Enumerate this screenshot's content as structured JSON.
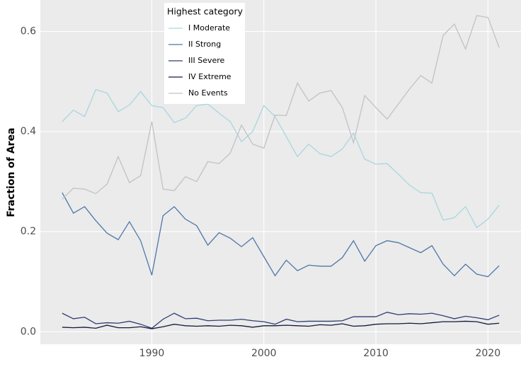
{
  "chart_data": {
    "type": "line",
    "y_label": "Fraction of Area",
    "legend_title": "Highest category",
    "x": [
      1982,
      1983,
      1984,
      1985,
      1986,
      1987,
      1988,
      1989,
      1990,
      1991,
      1992,
      1993,
      1994,
      1995,
      1996,
      1997,
      1998,
      1999,
      2000,
      2001,
      2002,
      2003,
      2004,
      2005,
      2006,
      2007,
      2008,
      2009,
      2010,
      2011,
      2012,
      2013,
      2014,
      2015,
      2016,
      2017,
      2018,
      2019,
      2020,
      2021
    ],
    "series": [
      {
        "name": "I Moderate",
        "color": "#a8d6df",
        "values": [
          0.42,
          0.443,
          0.43,
          0.484,
          0.477,
          0.44,
          0.453,
          0.48,
          0.452,
          0.448,
          0.418,
          0.427,
          0.452,
          0.455,
          0.437,
          0.42,
          0.38,
          0.4,
          0.452,
          0.43,
          0.39,
          0.35,
          0.375,
          0.356,
          0.35,
          0.365,
          0.397,
          0.345,
          0.335,
          0.336,
          0.315,
          0.293,
          0.278,
          0.277,
          0.223,
          0.228,
          0.25,
          0.208,
          0.225,
          0.253
        ]
      },
      {
        "name": "II Strong",
        "color": "#4f77a8",
        "values": [
          0.278,
          0.237,
          0.25,
          0.222,
          0.197,
          0.184,
          0.22,
          0.182,
          0.113,
          0.232,
          0.25,
          0.225,
          0.212,
          0.173,
          0.198,
          0.187,
          0.17,
          0.188,
          0.15,
          0.112,
          0.143,
          0.122,
          0.133,
          0.131,
          0.131,
          0.148,
          0.182,
          0.141,
          0.172,
          0.182,
          0.178,
          0.168,
          0.158,
          0.172,
          0.135,
          0.112,
          0.135,
          0.115,
          0.11,
          0.132
        ]
      },
      {
        "name": "III Severe",
        "color": "#2d3e72",
        "values": [
          0.037,
          0.026,
          0.029,
          0.016,
          0.018,
          0.017,
          0.021,
          0.015,
          0.007,
          0.025,
          0.037,
          0.026,
          0.027,
          0.022,
          0.023,
          0.023,
          0.025,
          0.022,
          0.02,
          0.015,
          0.025,
          0.02,
          0.021,
          0.021,
          0.021,
          0.022,
          0.03,
          0.03,
          0.03,
          0.039,
          0.034,
          0.036,
          0.035,
          0.037,
          0.032,
          0.026,
          0.031,
          0.028,
          0.024,
          0.033
        ]
      },
      {
        "name": "IV Extreme",
        "color": "#141a3a",
        "values": [
          0.009,
          0.008,
          0.009,
          0.007,
          0.013,
          0.008,
          0.008,
          0.01,
          0.006,
          0.01,
          0.015,
          0.012,
          0.011,
          0.012,
          0.011,
          0.013,
          0.012,
          0.009,
          0.012,
          0.012,
          0.013,
          0.012,
          0.011,
          0.014,
          0.013,
          0.016,
          0.011,
          0.012,
          0.015,
          0.016,
          0.016,
          0.017,
          0.016,
          0.018,
          0.02,
          0.02,
          0.021,
          0.02,
          0.015,
          0.017
        ]
      },
      {
        "name": "No Events",
        "color": "#c2c2c2",
        "values": [
          0.265,
          0.287,
          0.285,
          0.276,
          0.295,
          0.35,
          0.298,
          0.312,
          0.42,
          0.285,
          0.282,
          0.31,
          0.3,
          0.34,
          0.336,
          0.357,
          0.413,
          0.375,
          0.367,
          0.433,
          0.432,
          0.497,
          0.461,
          0.477,
          0.482,
          0.448,
          0.378,
          0.472,
          0.448,
          0.425,
          0.455,
          0.485,
          0.512,
          0.497,
          0.592,
          0.615,
          0.565,
          0.632,
          0.628,
          0.568
        ]
      }
    ],
    "xlim": [
      1980.05,
      2022.95
    ],
    "xticks": [
      1990,
      2000,
      2010,
      2020
    ],
    "ylim": [
      -0.025,
      0.663
    ],
    "yticks": [
      {
        "value": 0,
        "label": "0.0"
      },
      0.2,
      0.4,
      0.6
    ],
    "grid": true
  }
}
